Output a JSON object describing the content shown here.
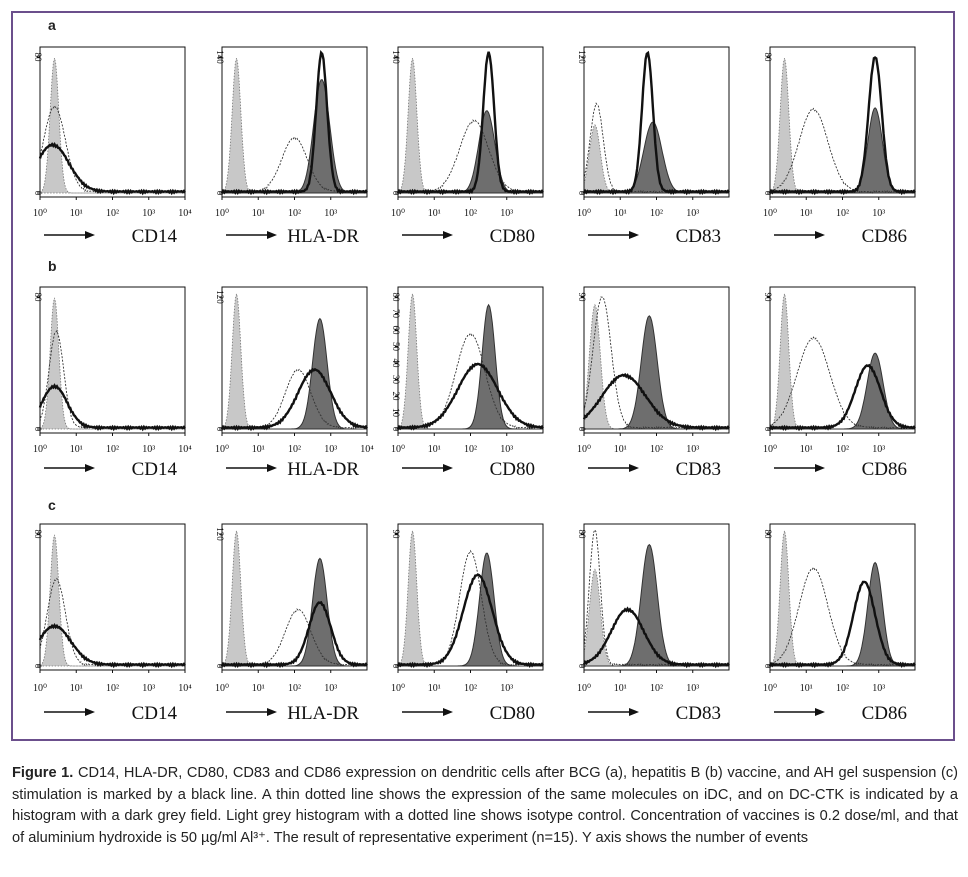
{
  "figure": {
    "caption_title": "Figure 1.",
    "caption_text": "CD14, HLA-DR, CD80, CD83 and CD86 expression on dendritic cells after BCG (a), hepatitis B (b) vaccine, and AH gel suspension (c) stimulation is marked by a black line. A thin dotted line shows the expression of the same molecules on iDC, and on DC-CTK is indicated by a histogram with a dark grey field. Light grey histogram with a dotted line shows isotype control. Concentration of vaccines is 0.2 dose/ml, and that of aluminium hydroxide is 50 µg/ml Al³⁺. The result of representative experiment (n=15). Y axis shows the number of events",
    "colors": {
      "frame": "#6b4f8c",
      "isotype_fill": "#c8c8c8",
      "dc_ctk_fill": "#6e6e6e",
      "line": "#111111"
    }
  },
  "chart_data": [
    {
      "panel": "a",
      "type": "area",
      "marker": "CD14",
      "x_scale": "log",
      "xlim": [
        1,
        10000
      ],
      "x_ticks": [
        "10⁰",
        "10¹",
        "10²",
        "10³",
        "10⁴"
      ],
      "y_ticks": [
        "0",
        "80"
      ],
      "ylim": [
        0,
        80
      ],
      "series": [
        {
          "kind": "isotype",
          "peak_log10": 0.4,
          "height": 0.95,
          "width": 0.12
        },
        {
          "kind": "idc",
          "peak_log10": 0.4,
          "height": 0.6,
          "width": 0.3
        },
        {
          "kind": "stimulated",
          "peak_log10": 0.35,
          "height": 0.33,
          "width": 0.45
        }
      ]
    },
    {
      "panel": "a",
      "type": "area",
      "marker": "HLA-DR",
      "x_scale": "log",
      "xlim": [
        1,
        10000
      ],
      "x_ticks": [
        "10⁰",
        "10¹",
        "10²",
        "10³"
      ],
      "y_ticks": [
        "0",
        "140"
      ],
      "ylim": [
        0,
        140
      ],
      "series": [
        {
          "kind": "isotype",
          "peak_log10": 0.4,
          "height": 0.95,
          "width": 0.12
        },
        {
          "kind": "idc",
          "peak_log10": 2.0,
          "height": 0.38,
          "width": 0.35
        },
        {
          "kind": "dc_ctk",
          "peak_log10": 2.75,
          "height": 0.8,
          "width": 0.22
        },
        {
          "kind": "stimulated",
          "peak_log10": 2.75,
          "height": 0.98,
          "width": 0.15
        }
      ]
    },
    {
      "panel": "a",
      "type": "area",
      "marker": "CD80",
      "x_scale": "log",
      "xlim": [
        1,
        10000
      ],
      "x_ticks": [
        "10⁰",
        "10¹",
        "10²",
        "10³"
      ],
      "y_ticks": [
        "0",
        "140"
      ],
      "ylim": [
        0,
        140
      ],
      "series": [
        {
          "kind": "isotype",
          "peak_log10": 0.4,
          "height": 0.95,
          "width": 0.12
        },
        {
          "kind": "idc",
          "peak_log10": 2.1,
          "height": 0.5,
          "width": 0.4
        },
        {
          "kind": "dc_ctk",
          "peak_log10": 2.45,
          "height": 0.58,
          "width": 0.22
        },
        {
          "kind": "stimulated",
          "peak_log10": 2.5,
          "height": 0.98,
          "width": 0.15
        }
      ]
    },
    {
      "panel": "a",
      "type": "area",
      "marker": "CD83",
      "x_scale": "log",
      "xlim": [
        1,
        10000
      ],
      "x_ticks": [
        "10⁰",
        "10¹",
        "10²",
        "10³"
      ],
      "y_ticks": [
        "0",
        "120"
      ],
      "ylim": [
        0,
        120
      ],
      "series": [
        {
          "kind": "isotype",
          "peak_log10": 0.3,
          "height": 0.48,
          "width": 0.15
        },
        {
          "kind": "idc",
          "peak_log10": 0.35,
          "height": 0.62,
          "width": 0.18
        },
        {
          "kind": "dc_ctk",
          "peak_log10": 1.9,
          "height": 0.5,
          "width": 0.25
        },
        {
          "kind": "stimulated",
          "peak_log10": 1.75,
          "height": 0.98,
          "width": 0.15
        }
      ]
    },
    {
      "panel": "a",
      "type": "area",
      "marker": "CD86",
      "x_scale": "log",
      "xlim": [
        1,
        10000
      ],
      "x_ticks": [
        "10⁰",
        "10¹",
        "10²",
        "10³"
      ],
      "y_ticks": [
        "0",
        "80"
      ],
      "ylim": [
        0,
        80
      ],
      "series": [
        {
          "kind": "isotype",
          "peak_log10": 0.4,
          "height": 0.95,
          "width": 0.12
        },
        {
          "kind": "idc",
          "peak_log10": 1.2,
          "height": 0.58,
          "width": 0.4
        },
        {
          "kind": "dc_ctk",
          "peak_log10": 2.9,
          "height": 0.6,
          "width": 0.2
        },
        {
          "kind": "stimulated",
          "peak_log10": 2.9,
          "height": 0.95,
          "width": 0.18
        }
      ]
    },
    {
      "panel": "b",
      "type": "area",
      "marker": "CD14",
      "x_scale": "log",
      "xlim": [
        1,
        10000
      ],
      "x_ticks": [
        "10⁰",
        "10¹",
        "10²",
        "10³",
        "10⁴"
      ],
      "y_ticks": [
        "0",
        "80"
      ],
      "ylim": [
        0,
        80
      ],
      "series": [
        {
          "kind": "isotype",
          "peak_log10": 0.4,
          "height": 0.95,
          "width": 0.12
        },
        {
          "kind": "idc",
          "peak_log10": 0.45,
          "height": 0.7,
          "width": 0.2
        },
        {
          "kind": "stimulated",
          "peak_log10": 0.4,
          "height": 0.3,
          "width": 0.35
        }
      ]
    },
    {
      "panel": "b",
      "type": "area",
      "marker": "HLA-DR",
      "x_scale": "log",
      "xlim": [
        1,
        10000
      ],
      "x_ticks": [
        "10⁰",
        "10¹",
        "10²",
        "10³",
        "10⁴"
      ],
      "y_ticks": [
        "0",
        "120"
      ],
      "ylim": [
        0,
        120
      ],
      "series": [
        {
          "kind": "isotype",
          "peak_log10": 0.4,
          "height": 0.98,
          "width": 0.12
        },
        {
          "kind": "idc",
          "peak_log10": 2.1,
          "height": 0.42,
          "width": 0.35
        },
        {
          "kind": "dc_ctk",
          "peak_log10": 2.7,
          "height": 0.8,
          "width": 0.2
        },
        {
          "kind": "stimulated",
          "peak_log10": 2.55,
          "height": 0.42,
          "width": 0.45
        }
      ]
    },
    {
      "panel": "b",
      "type": "area",
      "marker": "CD80",
      "x_scale": "log",
      "xlim": [
        1,
        10000
      ],
      "x_ticks": [
        "10⁰",
        "10¹",
        "10²",
        "10³"
      ],
      "y_ticks": [
        "0",
        "10",
        "20",
        "30",
        "40",
        "50",
        "60",
        "70",
        "80"
      ],
      "ylim": [
        0,
        80
      ],
      "series": [
        {
          "kind": "isotype",
          "peak_log10": 0.4,
          "height": 0.98,
          "width": 0.12
        },
        {
          "kind": "idc",
          "peak_log10": 2.0,
          "height": 0.68,
          "width": 0.4
        },
        {
          "kind": "dc_ctk",
          "peak_log10": 2.5,
          "height": 0.9,
          "width": 0.18
        },
        {
          "kind": "stimulated",
          "peak_log10": 2.2,
          "height": 0.46,
          "width": 0.55
        }
      ]
    },
    {
      "panel": "b",
      "type": "area",
      "marker": "CD83",
      "x_scale": "log",
      "xlim": [
        1,
        10000
      ],
      "x_ticks": [
        "10⁰",
        "10¹",
        "10²",
        "10³"
      ],
      "y_ticks": [
        "0",
        "90"
      ],
      "ylim": [
        0,
        90
      ],
      "series": [
        {
          "kind": "isotype",
          "peak_log10": 0.3,
          "height": 0.9,
          "width": 0.15
        },
        {
          "kind": "idc",
          "peak_log10": 0.5,
          "height": 0.95,
          "width": 0.25
        },
        {
          "kind": "dc_ctk",
          "peak_log10": 1.8,
          "height": 0.82,
          "width": 0.22
        },
        {
          "kind": "stimulated",
          "peak_log10": 1.1,
          "height": 0.38,
          "width": 0.6
        }
      ]
    },
    {
      "panel": "b",
      "type": "area",
      "marker": "CD86",
      "x_scale": "log",
      "xlim": [
        1,
        10000
      ],
      "x_ticks": [
        "10⁰",
        "10¹",
        "10²",
        "10³"
      ],
      "y_ticks": [
        "0",
        "90"
      ],
      "ylim": [
        0,
        90
      ],
      "series": [
        {
          "kind": "isotype",
          "peak_log10": 0.4,
          "height": 0.98,
          "width": 0.12
        },
        {
          "kind": "idc",
          "peak_log10": 1.2,
          "height": 0.65,
          "width": 0.45
        },
        {
          "kind": "dc_ctk",
          "peak_log10": 2.9,
          "height": 0.55,
          "width": 0.22
        },
        {
          "kind": "stimulated",
          "peak_log10": 2.7,
          "height": 0.45,
          "width": 0.35
        }
      ]
    },
    {
      "panel": "c",
      "type": "area",
      "marker": "CD14",
      "x_scale": "log",
      "xlim": [
        1,
        10000
      ],
      "x_ticks": [
        "10⁰",
        "10¹",
        "10²",
        "10³",
        "10⁴"
      ],
      "y_ticks": [
        "0",
        "80"
      ],
      "ylim": [
        0,
        80
      ],
      "series": [
        {
          "kind": "isotype",
          "peak_log10": 0.4,
          "height": 0.95,
          "width": 0.12
        },
        {
          "kind": "idc",
          "peak_log10": 0.45,
          "height": 0.62,
          "width": 0.25
        },
        {
          "kind": "stimulated",
          "peak_log10": 0.4,
          "height": 0.28,
          "width": 0.45
        }
      ]
    },
    {
      "panel": "c",
      "type": "area",
      "marker": "HLA-DR",
      "x_scale": "log",
      "xlim": [
        1,
        10000
      ],
      "x_ticks": [
        "10⁰",
        "10¹",
        "10²",
        "10³"
      ],
      "y_ticks": [
        "0",
        "120"
      ],
      "ylim": [
        0,
        120
      ],
      "series": [
        {
          "kind": "isotype",
          "peak_log10": 0.4,
          "height": 0.98,
          "width": 0.12
        },
        {
          "kind": "idc",
          "peak_log10": 2.1,
          "height": 0.4,
          "width": 0.35
        },
        {
          "kind": "dc_ctk",
          "peak_log10": 2.7,
          "height": 0.78,
          "width": 0.2
        },
        {
          "kind": "stimulated",
          "peak_log10": 2.7,
          "height": 0.45,
          "width": 0.3
        }
      ]
    },
    {
      "panel": "c",
      "type": "area",
      "marker": "CD80",
      "x_scale": "log",
      "xlim": [
        1,
        10000
      ],
      "x_ticks": [
        "10⁰",
        "10¹",
        "10²",
        "10³"
      ],
      "y_ticks": [
        "0",
        "90"
      ],
      "ylim": [
        0,
        90
      ],
      "series": [
        {
          "kind": "isotype",
          "peak_log10": 0.4,
          "height": 0.98,
          "width": 0.12
        },
        {
          "kind": "idc",
          "peak_log10": 2.0,
          "height": 0.82,
          "width": 0.3
        },
        {
          "kind": "dc_ctk",
          "peak_log10": 2.45,
          "height": 0.82,
          "width": 0.2
        },
        {
          "kind": "stimulated",
          "peak_log10": 2.2,
          "height": 0.65,
          "width": 0.4
        }
      ]
    },
    {
      "panel": "c",
      "type": "area",
      "marker": "CD83",
      "x_scale": "log",
      "xlim": [
        1,
        10000
      ],
      "x_ticks": [
        "10⁰",
        "10¹",
        "10²",
        "10³"
      ],
      "y_ticks": [
        "0",
        "80"
      ],
      "ylim": [
        0,
        80
      ],
      "series": [
        {
          "kind": "isotype",
          "peak_log10": 0.3,
          "height": 0.7,
          "width": 0.15
        },
        {
          "kind": "idc",
          "peak_log10": 0.3,
          "height": 0.98,
          "width": 0.15
        },
        {
          "kind": "dc_ctk",
          "peak_log10": 1.8,
          "height": 0.88,
          "width": 0.22
        },
        {
          "kind": "stimulated",
          "peak_log10": 1.2,
          "height": 0.4,
          "width": 0.45
        }
      ]
    },
    {
      "panel": "c",
      "type": "area",
      "marker": "CD86",
      "x_scale": "log",
      "xlim": [
        1,
        10000
      ],
      "x_ticks": [
        "10⁰",
        "10¹",
        "10²",
        "10³"
      ],
      "y_ticks": [
        "0",
        "80"
      ],
      "ylim": [
        0,
        80
      ],
      "series": [
        {
          "kind": "isotype",
          "peak_log10": 0.4,
          "height": 0.98,
          "width": 0.12
        },
        {
          "kind": "idc",
          "peak_log10": 1.2,
          "height": 0.7,
          "width": 0.4
        },
        {
          "kind": "dc_ctk",
          "peak_log10": 2.9,
          "height": 0.75,
          "width": 0.2
        },
        {
          "kind": "stimulated",
          "peak_log10": 2.6,
          "height": 0.6,
          "width": 0.3
        }
      ]
    }
  ]
}
